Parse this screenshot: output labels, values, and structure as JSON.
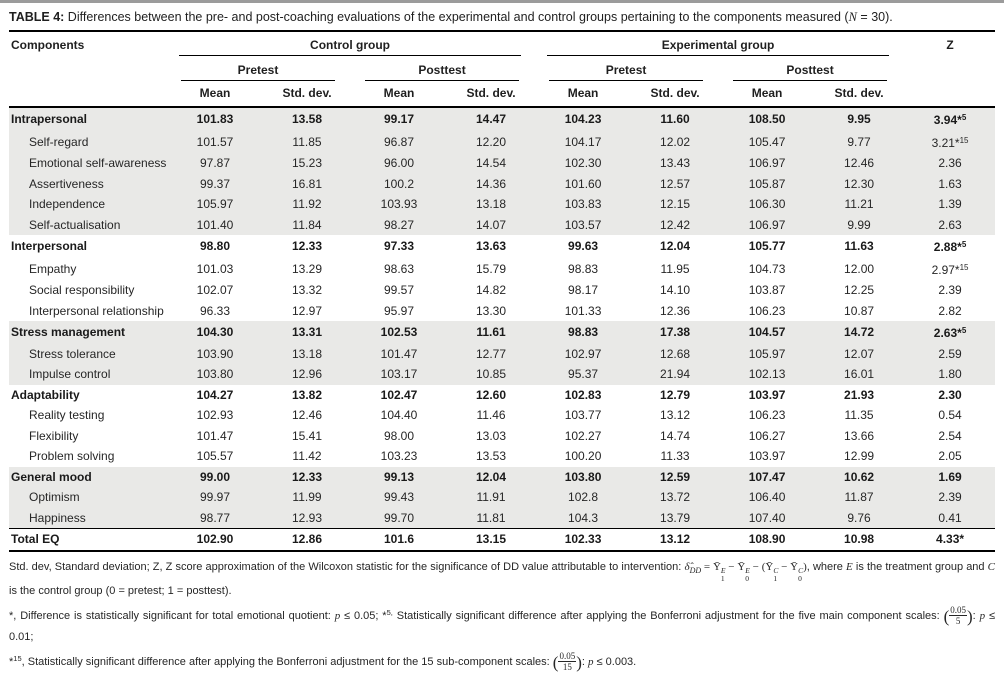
{
  "title_tokens": [
    {
      "b": "TABLE 4:"
    },
    {
      "t": " Differences between the pre- and post-coaching evaluations of the experimental and control groups pertaining to the components measured ("
    },
    {
      "i": "N"
    },
    {
      "t": " = 30)."
    }
  ],
  "header": {
    "components": "Components",
    "control_group": "Control group",
    "experimental_group": "Experimental group",
    "pretest": "Pretest",
    "posttest": "Posttest",
    "mean": "Mean",
    "std_dev": "Std. dev.",
    "z": "Z"
  },
  "rows": [
    {
      "label": "Intrapersonal",
      "indent": false,
      "bold": true,
      "shade": true,
      "values": [
        "101.83",
        "13.58",
        "99.17",
        "14.47",
        "104.23",
        "11.60",
        "108.50",
        "9.95"
      ],
      "z": "3.94*",
      "z_sup": "5"
    },
    {
      "label": "Self-regard",
      "indent": true,
      "bold": false,
      "shade": true,
      "values": [
        "101.57",
        "11.85",
        "96.87",
        "12.20",
        "104.17",
        "12.02",
        "105.47",
        "9.77"
      ],
      "z": "3.21*",
      "z_sup": "15"
    },
    {
      "label": "Emotional self-awareness",
      "indent": true,
      "bold": false,
      "shade": true,
      "values": [
        "97.87",
        "15.23",
        "96.00",
        "14.54",
        "102.30",
        "13.43",
        "106.97",
        "12.46"
      ],
      "z": "2.36",
      "z_sup": ""
    },
    {
      "label": "Assertiveness",
      "indent": true,
      "bold": false,
      "shade": true,
      "values": [
        "99.37",
        "16.81",
        "100.2",
        "14.36",
        "101.60",
        "12.57",
        "105.87",
        "12.30"
      ],
      "z": "1.63",
      "z_sup": ""
    },
    {
      "label": "Independence",
      "indent": true,
      "bold": false,
      "shade": true,
      "values": [
        "105.97",
        "11.92",
        "103.93",
        "13.18",
        "103.83",
        "12.15",
        "106.30",
        "11.21"
      ],
      "z": "1.39",
      "z_sup": ""
    },
    {
      "label": "Self-actualisation",
      "indent": true,
      "bold": false,
      "shade": true,
      "values": [
        "101.40",
        "11.84",
        "98.27",
        "14.07",
        "103.57",
        "12.42",
        "106.97",
        "9.99"
      ],
      "z": "2.63",
      "z_sup": ""
    },
    {
      "label": "Interpersonal",
      "indent": false,
      "bold": true,
      "shade": false,
      "values": [
        "98.80",
        "12.33",
        "97.33",
        "13.63",
        "99.63",
        "12.04",
        "105.77",
        "11.63"
      ],
      "z": "2.88*",
      "z_sup": "5"
    },
    {
      "label": "Empathy",
      "indent": true,
      "bold": false,
      "shade": false,
      "values": [
        "101.03",
        "13.29",
        "98.63",
        "15.79",
        "98.83",
        "11.95",
        "104.73",
        "12.00"
      ],
      "z": "2.97*",
      "z_sup": "15"
    },
    {
      "label": "Social responsibility",
      "indent": true,
      "bold": false,
      "shade": false,
      "values": [
        "102.07",
        "13.32",
        "99.57",
        "14.82",
        "98.17",
        "14.10",
        "103.87",
        "12.25"
      ],
      "z": "2.39",
      "z_sup": ""
    },
    {
      "label": "Interpersonal relationship",
      "indent": true,
      "bold": false,
      "shade": false,
      "values": [
        "96.33",
        "12.97",
        "95.97",
        "13.30",
        "101.33",
        "12.36",
        "106.23",
        "10.87"
      ],
      "z": "2.82",
      "z_sup": ""
    },
    {
      "label": "Stress management",
      "indent": false,
      "bold": true,
      "shade": true,
      "values": [
        "104.30",
        "13.31",
        "102.53",
        "11.61",
        "98.83",
        "17.38",
        "104.57",
        "14.72"
      ],
      "z": "2.63*",
      "z_sup": "5"
    },
    {
      "label": "Stress tolerance",
      "indent": true,
      "bold": false,
      "shade": true,
      "values": [
        "103.90",
        "13.18",
        "101.47",
        "12.77",
        "102.97",
        "12.68",
        "105.97",
        "12.07"
      ],
      "z": "2.59",
      "z_sup": ""
    },
    {
      "label": "Impulse control",
      "indent": true,
      "bold": false,
      "shade": true,
      "values": [
        "103.80",
        "12.96",
        "103.17",
        "10.85",
        "95.37",
        "21.94",
        "102.13",
        "16.01"
      ],
      "z": "1.80",
      "z_sup": ""
    },
    {
      "label": "Adaptability",
      "indent": false,
      "bold": true,
      "shade": false,
      "values": [
        "104.27",
        "13.82",
        "102.47",
        "12.60",
        "102.83",
        "12.79",
        "103.97",
        "21.93"
      ],
      "z": "2.30",
      "z_sup": ""
    },
    {
      "label": "Reality testing",
      "indent": true,
      "bold": false,
      "shade": false,
      "values": [
        "102.93",
        "12.46",
        "104.40",
        "11.46",
        "103.77",
        "13.12",
        "106.23",
        "11.35"
      ],
      "z": "0.54",
      "z_sup": ""
    },
    {
      "label": "Flexibility",
      "indent": true,
      "bold": false,
      "shade": false,
      "values": [
        "101.47",
        "15.41",
        "98.00",
        "13.03",
        "102.27",
        "14.74",
        "106.27",
        "13.66"
      ],
      "z": "2.54",
      "z_sup": ""
    },
    {
      "label": "Problem solving",
      "indent": true,
      "bold": false,
      "shade": false,
      "values": [
        "105.57",
        "11.42",
        "103.23",
        "13.53",
        "100.20",
        "11.33",
        "103.97",
        "12.99"
      ],
      "z": "2.05",
      "z_sup": ""
    },
    {
      "label": "General mood",
      "indent": false,
      "bold": true,
      "shade": true,
      "values": [
        "99.00",
        "12.33",
        "99.13",
        "12.04",
        "103.80",
        "12.59",
        "107.47",
        "10.62"
      ],
      "z": "1.69",
      "z_sup": ""
    },
    {
      "label": "Optimism",
      "indent": true,
      "bold": false,
      "shade": true,
      "values": [
        "99.97",
        "11.99",
        "99.43",
        "11.91",
        "102.8",
        "13.72",
        "106.40",
        "11.87"
      ],
      "z": "2.39",
      "z_sup": ""
    },
    {
      "label": "Happiness",
      "indent": true,
      "bold": false,
      "shade": true,
      "values": [
        "98.77",
        "12.93",
        "99.70",
        "11.81",
        "104.3",
        "13.79",
        "107.40",
        "9.76"
      ],
      "z": "0.41",
      "z_sup": ""
    },
    {
      "label": "Total EQ",
      "indent": false,
      "bold": true,
      "shade": false,
      "total": true,
      "values": [
        "102.90",
        "12.86",
        "101.6",
        "13.15",
        "102.33",
        "13.12",
        "108.90",
        "10.98"
      ],
      "z": "4.33*",
      "z_sup": ""
    }
  ],
  "footnotes": [
    [
      {
        "t": "Std. dev, Standard deviation; Z, Z score approximation of the Wilcoxon statistic for the significance of DD value attributable to intervention: "
      },
      {
        "mi": "δ̂"
      },
      {
        "sub": "DD"
      },
      {
        "m": " = Ȳ"
      },
      {
        "ss": [
          "E",
          "1"
        ]
      },
      {
        "m": " − Ȳ"
      },
      {
        "ss": [
          "E",
          "0"
        ]
      },
      {
        "m": " − (Ȳ"
      },
      {
        "ss": [
          "C",
          "1"
        ]
      },
      {
        "m": " − Ȳ"
      },
      {
        "ss": [
          "C",
          "0"
        ]
      },
      {
        "m": ")"
      },
      {
        "t": ", where "
      },
      {
        "mi": "E"
      },
      {
        "t": " is the treatment group and "
      },
      {
        "mi": "C"
      },
      {
        "t": " is the control group (0 = pretest; 1 = posttest)."
      }
    ],
    [
      {
        "t": "*, Difference is statistically significant for total emotional quotient: "
      },
      {
        "mi": "p"
      },
      {
        "t": " ≤ 0.05; *"
      },
      {
        "sup": "5,"
      },
      {
        "t": " Statistically significant difference after applying the Bonferroni adjustment for the five main component scales: "
      },
      {
        "frac": [
          "0.05",
          "5"
        ]
      },
      {
        "t": ": "
      },
      {
        "mi": "p"
      },
      {
        "t": " ≤ 0.01;"
      }
    ],
    [
      {
        "t": "*"
      },
      {
        "sup": "15"
      },
      {
        "t": ", Statistically significant difference after applying the Bonferroni adjustment for the 15 sub-component scales: "
      },
      {
        "frac": [
          "0.05",
          "15"
        ]
      },
      {
        "t": ": "
      },
      {
        "mi": "p"
      },
      {
        "t": " ≤ 0.003."
      }
    ]
  ],
  "colors": {
    "row_shade": "#e9e9e7",
    "rule": "#000000",
    "top_edge": "#9b9b9b"
  }
}
